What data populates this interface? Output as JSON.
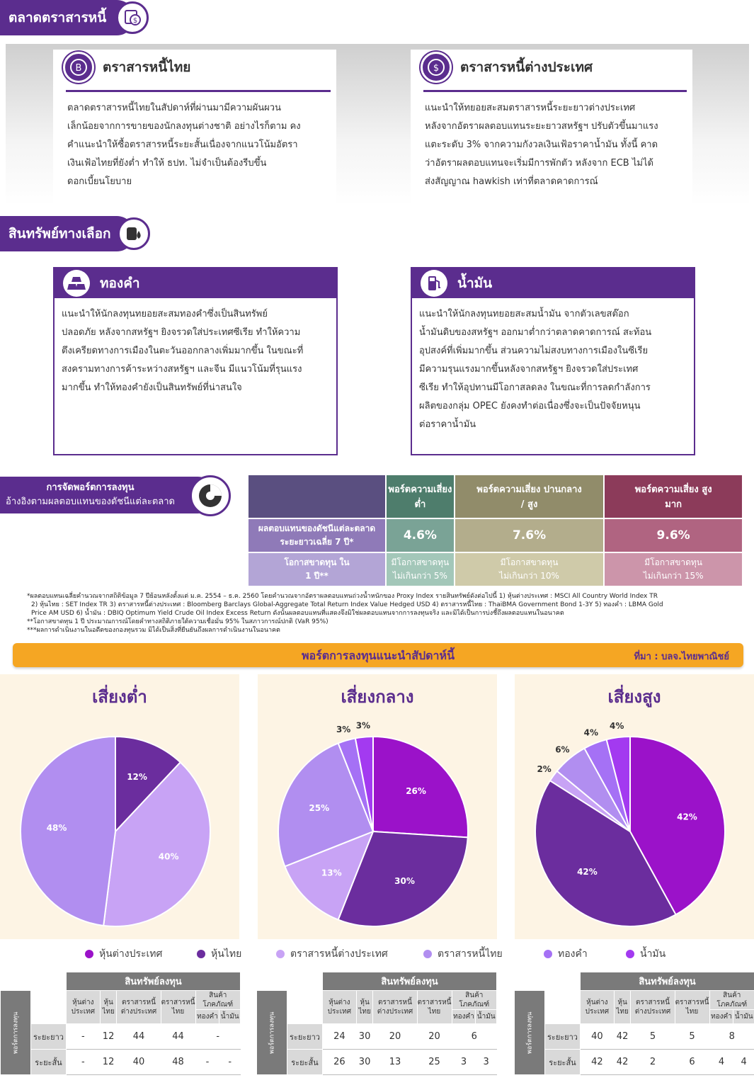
{
  "sections": {
    "bond_market": "ตลาดตราสารหนี้",
    "alternative": "สินทรัพย์ทางเลือก"
  },
  "bonds": {
    "thai": {
      "title": "ตราสารหนี้ไทย",
      "lines": [
        "ตลาดตราสารหนี้ไทยในสัปดาห์ที่ผ่านมามีความผันผวน",
        "เล็กน้อยจากการขายของนักลงทุนต่างชาติ อย่างไรก็ตาม คง",
        "คำแนะนำให้ซื้อตราสารหนี้ระยะสั้นเนื่องจากแนวโน้มอัตรา",
        "เงินเฟ้อไทยที่ยังต่ำ ทำให้ ธปท. ไม่จำเป็นต้องรีบขึ้น",
        "ดอกเบี้ยนโยบาย"
      ]
    },
    "foreign": {
      "title": "ตราสารหนี้ต่างประเทศ",
      "lines": [
        "แนะนำให้ทยอยสะสมตราสารหนี้ระยะยาวต่างประเทศ",
        "หลังจากอัตราผลตอบแทนระยะยาวสหรัฐฯ ปรับตัวขึ้นมาแรง",
        "แตะระดับ 3% จากความกังวลเงินเฟ้อราคาน้ำมัน ทั้งนี้ คาด",
        "ว่าอัตราผลตอบแทนจะเริ่มมีการพักตัว หลังจาก ECB ไม่ได้",
        "ส่งสัญญาณ hawkish เท่าที่ตลาดคาดการณ์"
      ]
    }
  },
  "alts": {
    "gold": {
      "title": "ทองคำ",
      "lines": [
        "แนะนำให้นักลงทุนทยอยสะสมทองคำซึ่งเป็นสินทรัพย์",
        "ปลอดภัย หลังจากสหรัฐฯ ยิงจรวดใส่ประเทศซีเรีย ทำให้ความ",
        "ตึงเครียดทางการเมืองในตะวันออกกลางเพิ่มมากขึ้น ในขณะที่",
        "สงครามทางการค้าระหว่างสหรัฐฯ และจีน มีแนวโน้มที่รุนแรง",
        "มากขึ้น ทำให้ทองคำยังเป็นสินทรัพย์ที่น่าสนใจ"
      ]
    },
    "oil": {
      "title": "น้ำมัน",
      "lines": [
        "แนะนำให้นักลงทุนทยอยสะสมน้ำมัน จากตัวเลขสต๊อก",
        "น้ำมันดิบของสหรัฐฯ ออกมาต่ำกว่าตลาดคาดการณ์ สะท้อน",
        "อุปสงค์ที่เพิ่มมากขึ้น ส่วนความไม่สงบทางการเมืองในซีเรีย",
        "มีความรุนแรงมากขึ้นหลังจากสหรัฐฯ ยิงจรวดใส่ประเทศ",
        "ซีเรีย ทำให้อุปทานมีโอกาสลดลง ในขณะที่การลดกำลังการ",
        "ผลิตของกลุ่ม OPEC ยังคงทำต่อเนื่องซึ่งจะเป็นปัจจัยหนุน",
        "ต่อราคาน้ำมัน"
      ]
    }
  },
  "allocation": {
    "tab_line1": "การจัดพอร์ตการลงทุน",
    "tab_line2": "อ้างอิงตามผลตอบแทนของดัชนีแต่ละตลาด",
    "row_return": "ผลตอบแทนของดัชนีแต่ละตลาด ระยะยาวเฉลี่ย 7 ปี*",
    "row_loss": "โอกาสขาดทุน ใน 1 ปี**",
    "columns": [
      {
        "name": "พอร์ตความเสี่ยงต่ำ",
        "ret": "4.6%",
        "loss1": "มีโอกาสขาดทุน",
        "loss2": "ไม่เกินกว่า 5%",
        "head": "#4e7d6c",
        "mid": "#7aa396",
        "low": "#a3c7b9"
      },
      {
        "name": "พอร์ตความเสี่ยง ปานกลาง / สูง",
        "ret": "7.6%",
        "loss1": "มีโอกาสขาดทุน",
        "loss2": "ไม่เกินกว่า 10%",
        "head": "#918c6a",
        "mid": "#b3ad8c",
        "low": "#cfcaa9"
      },
      {
        "name": "พอร์ตความเสี่ยง สูงมาก",
        "ret": "9.6%",
        "loss1": "มีโอกาสขาดทุน",
        "loss2": "ไม่เกินกว่า 15%",
        "head": "#8c3b5a",
        "mid": "#b06481",
        "low": "#cc95aa"
      }
    ]
  },
  "notes": [
    "*ผลตอบแทนเฉลี่ยคำนวณจากสถิติข้อมูล 7 ปีย้อนหลังตั้งแต่ ม.ค. 2554 – ธ.ค. 2560 โดยคำนวณจากอัตราผลตอบแทนถ่วงน้ำหนักของ Proxy Index รายสินทรัพย์ดังต่อไปนี้ 1) หุ้นต่างประเทศ : MSCI All Country World Index TR",
    "2) หุ้นไทย : SET Index TR 3) ตราสารหนี้ต่างประเทศ : Bloomberg Barclays Global-Aggregate Total Return Index Value Hedged USD 4) ตราสารหนี้ไทย : ThaiBMA Government Bond 1-3Y 5) ทองคำ : LBMA Gold",
    "Price AM USD 6) น้ำมัน : DBIQ Optimum Yield Crude Oil Index Excess Return ดังนั้นผลตอบแทนที่แสดงจึงมิใช่ผลตอบแทนจากการลงทุนจริง และมิได้เป็นการบ่งชี้ถึงผลตอบแทนในอนาคต",
    "**โอกาสขาดทุน 1 ปี ประมาณการณ์โดยคำทางสถิติภายใต้ความเชื่อมั่น 95% ในสภาวการณ์ปกติ (VaR 95%)",
    "***ผลการดำเนินงานในอดีตของกองทุนรวม มิได้เป็นสิ่งที่ยืนยันถึงผลการดำเนินงานในอนาคต"
  ],
  "banner": {
    "title": "พอร์ตการลงทุนแนะนำสัปดาห์นี้",
    "source": "ที่มา : บลจ.ไทยพาณิชย์"
  },
  "colors": {
    "purple": "#5b2d8e",
    "orange": "#f5a623",
    "foreign_equity": "#9b12c9",
    "thai_equity": "#6b2d9e",
    "foreign_bond": "#c8a3f5",
    "thai_bond": "#b18ef0",
    "gold": "#a571f5",
    "oil": "#a33af0"
  },
  "legend": [
    "หุ้นต่างประเทศ",
    "หุ้นไทย",
    "ตราสารหนี้ต่างประเทศ",
    "ตราสารหนี้ไทย",
    "ทองคำ",
    "น้ำมัน"
  ],
  "chart_data": [
    {
      "type": "pie",
      "title": "เสี่ยงต่ำ",
      "labels": [
        "หุ้นไทย",
        "ตราสารหนี้ต่างประเทศ",
        "ตราสารหนี้ไทย"
      ],
      "values": [
        12,
        40,
        48
      ],
      "value_labels": [
        "12%",
        "40%",
        "48%"
      ]
    },
    {
      "type": "pie",
      "title": "เสี่ยงกลาง",
      "labels": [
        "หุ้นต่างประเทศ",
        "หุ้นไทย",
        "ตราสารหนี้ต่างประเทศ",
        "ตราสารหนี้ไทย",
        "ทองคำ",
        "น้ำมัน"
      ],
      "values": [
        26,
        30,
        13,
        25,
        3,
        3
      ],
      "value_labels": [
        "26%",
        "30%",
        "13%",
        "25%",
        "3%",
        "3%"
      ]
    },
    {
      "type": "pie",
      "title": "เสี่ยงสูง",
      "labels": [
        "หุ้นต่างประเทศ",
        "หุ้นไทย",
        "ตราสารหนี้ต่างประเทศ",
        "ตราสารหนี้ไทย",
        "ทองคำ",
        "น้ำมัน"
      ],
      "values": [
        42,
        42,
        2,
        6,
        4,
        4
      ],
      "value_labels": [
        "42%",
        "42%",
        "2%",
        "6%",
        "4%",
        "4%"
      ]
    }
  ],
  "asset_tables": {
    "header": "สินทรัพย์ลงทุน",
    "side": "พอร์ตการลงทุน",
    "cols": [
      "หุ้นต่าง ประเทศ",
      "หุ้นไทย",
      "ตราสารหนี้ ต่างประเทศ",
      "ตราสารหนี้ ไทย",
      "สินค้า โภคภัณฑ์"
    ],
    "sub": [
      "ทองคำ",
      "น้ำมัน"
    ],
    "rows": [
      "ระยะยาว",
      "ระยะสั้น"
    ],
    "tables": [
      {
        "long": [
          "-",
          "12",
          "44",
          "44",
          "-"
        ],
        "short": [
          "-",
          "12",
          "40",
          "48",
          "-",
          "-"
        ]
      },
      {
        "long": [
          "24",
          "30",
          "20",
          "20",
          "6"
        ],
        "short": [
          "26",
          "30",
          "13",
          "25",
          "3",
          "3"
        ]
      },
      {
        "long": [
          "40",
          "42",
          "5",
          "5",
          "8"
        ],
        "short": [
          "42",
          "42",
          "2",
          "6",
          "4",
          "4"
        ]
      }
    ]
  }
}
